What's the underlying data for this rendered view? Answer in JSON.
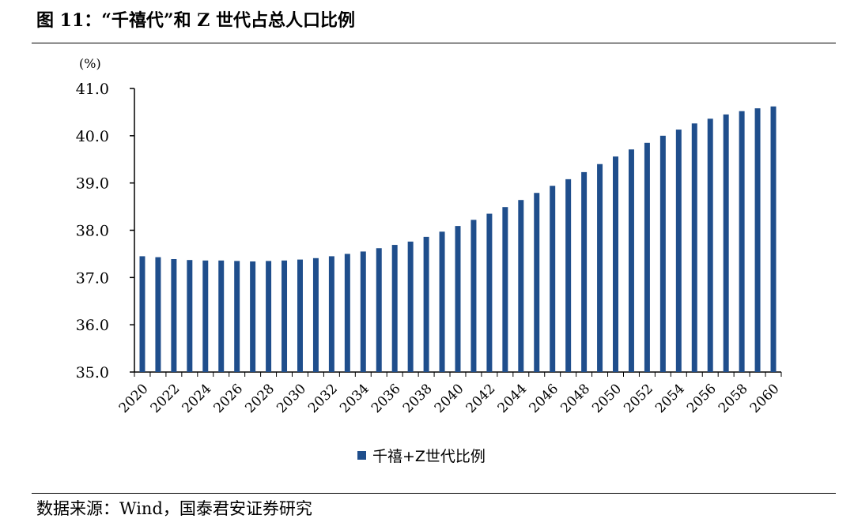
{
  "header": {
    "title": "图 11：“千禧代”和 Z 世代占总人口比例"
  },
  "footer": {
    "source": "数据来源：Wind，国泰君安证券研究"
  },
  "chart_data": {
    "type": "bar",
    "title": "图 11：“千禧代”和 Z 世代占总人口比例",
    "unit": "(%)",
    "xlabel": "",
    "ylabel": "",
    "ylim": [
      35.0,
      41.0
    ],
    "y_ticks": [
      "35.0",
      "36.0",
      "37.0",
      "38.0",
      "39.0",
      "40.0",
      "41.0"
    ],
    "x_tick_labels": [
      "2020",
      "2022",
      "2024",
      "2026",
      "2028",
      "2030",
      "2032",
      "2034",
      "2036",
      "2038",
      "2040",
      "2042",
      "2044",
      "2046",
      "2048",
      "2050",
      "2052",
      "2054",
      "2056",
      "2058",
      "2060"
    ],
    "categories": [
      "2020",
      "2021",
      "2022",
      "2023",
      "2024",
      "2025",
      "2026",
      "2027",
      "2028",
      "2029",
      "2030",
      "2031",
      "2032",
      "2033",
      "2034",
      "2035",
      "2036",
      "2037",
      "2038",
      "2039",
      "2040",
      "2041",
      "2042",
      "2043",
      "2044",
      "2045",
      "2046",
      "2047",
      "2048",
      "2049",
      "2050",
      "2051",
      "2052",
      "2053",
      "2054",
      "2055",
      "2056",
      "2057",
      "2058",
      "2059",
      "2060"
    ],
    "series": [
      {
        "name": "千禧+Z世代比例",
        "color": "#1f4e8c",
        "values": [
          37.45,
          37.43,
          37.39,
          37.37,
          37.36,
          37.36,
          37.35,
          37.34,
          37.35,
          37.36,
          37.38,
          37.41,
          37.45,
          37.5,
          37.55,
          37.62,
          37.69,
          37.76,
          37.86,
          37.97,
          38.09,
          38.22,
          38.35,
          38.49,
          38.64,
          38.79,
          38.94,
          39.08,
          39.23,
          39.4,
          39.56,
          39.71,
          39.85,
          40.0,
          40.13,
          40.26,
          40.36,
          40.45,
          40.52,
          40.58,
          40.62
        ]
      }
    ],
    "legend_position": "bottom-center",
    "grid": false
  }
}
